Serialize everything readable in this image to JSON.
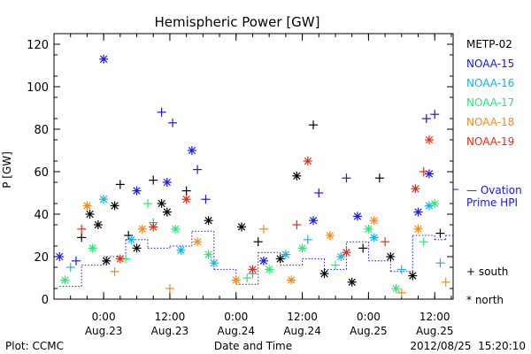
{
  "chart_data": {
    "type": "scatter",
    "title": "Hemispheric Power [GW]",
    "xlabel": "Date and Time",
    "ylabel": "P [GW]",
    "ylim": [
      0,
      125
    ],
    "yticks": [
      0,
      20,
      40,
      60,
      80,
      100,
      120
    ],
    "xlim": [
      "2012-08-22T15:00",
      "2012-08-25T15:20"
    ],
    "xticks": [
      {
        "t": "2012-08-23T00:00",
        "line1": "0:00",
        "line2": "Aug.23"
      },
      {
        "t": "2012-08-23T12:00",
        "line1": "12:00",
        "line2": "Aug.23"
      },
      {
        "t": "2012-08-24T00:00",
        "line1": "0:00",
        "line2": "Aug.24"
      },
      {
        "t": "2012-08-24T12:00",
        "line1": "12:00",
        "line2": "Aug.24"
      },
      {
        "t": "2012-08-25T00:00",
        "line1": "0:00",
        "line2": "Aug.25"
      },
      {
        "t": "2012-08-25T12:00",
        "line1": "12:00",
        "line2": "Aug.25"
      }
    ],
    "grid": false,
    "legend_position": "right",
    "series": [
      {
        "name": "METP-02",
        "color": "#000000",
        "points": [
          {
            "t": "2012-08-22T20:00",
            "y": 29,
            "m": "south"
          },
          {
            "t": "2012-08-22T21:30",
            "y": 40,
            "m": "north"
          },
          {
            "t": "2012-08-22T23:00",
            "y": 35,
            "m": "north"
          },
          {
            "t": "2012-08-23T00:30",
            "y": 18,
            "m": "north"
          },
          {
            "t": "2012-08-23T02:00",
            "y": 44,
            "m": "north"
          },
          {
            "t": "2012-08-23T03:00",
            "y": 54,
            "m": "south"
          },
          {
            "t": "2012-08-23T04:30",
            "y": 30,
            "m": "south"
          },
          {
            "t": "2012-08-23T06:00",
            "y": 24,
            "m": "north"
          },
          {
            "t": "2012-08-23T09:00",
            "y": 56,
            "m": "south"
          },
          {
            "t": "2012-08-23T10:30",
            "y": 45,
            "m": "north"
          },
          {
            "t": "2012-08-23T11:30",
            "y": 41,
            "m": "north"
          },
          {
            "t": "2012-08-23T15:00",
            "y": 51,
            "m": "south"
          },
          {
            "t": "2012-08-23T19:00",
            "y": 37,
            "m": "north"
          },
          {
            "t": "2012-08-24T01:00",
            "y": 34,
            "m": "north"
          },
          {
            "t": "2012-08-24T04:00",
            "y": 27,
            "m": "south"
          },
          {
            "t": "2012-08-24T08:00",
            "y": 19,
            "m": "north"
          },
          {
            "t": "2012-08-24T11:00",
            "y": 58,
            "m": "north"
          },
          {
            "t": "2012-08-24T14:00",
            "y": 82,
            "m": "south"
          },
          {
            "t": "2012-08-24T16:00",
            "y": 12,
            "m": "north"
          },
          {
            "t": "2012-08-24T21:00",
            "y": 8,
            "m": "north"
          },
          {
            "t": "2012-08-24T23:00",
            "y": 24,
            "m": "south"
          },
          {
            "t": "2012-08-25T02:00",
            "y": 57,
            "m": "south"
          },
          {
            "t": "2012-08-25T04:00",
            "y": 20,
            "m": "north"
          },
          {
            "t": "2012-08-25T08:00",
            "y": 11,
            "m": "north"
          },
          {
            "t": "2012-08-25T13:00",
            "y": 31,
            "m": "south"
          }
        ]
      },
      {
        "name": "NOAA-15",
        "color": "#1a1adc",
        "points": [
          {
            "t": "2012-08-22T16:00",
            "y": 20,
            "m": "north"
          },
          {
            "t": "2012-08-22T19:00",
            "y": 18,
            "m": "south"
          },
          {
            "t": "2012-08-23T00:00",
            "y": 113,
            "m": "north"
          },
          {
            "t": "2012-08-23T06:00",
            "y": 51,
            "m": "north"
          },
          {
            "t": "2012-08-23T10:30",
            "y": 88,
            "m": "south"
          },
          {
            "t": "2012-08-23T11:30",
            "y": 55,
            "m": "north"
          },
          {
            "t": "2012-08-23T12:30",
            "y": 83,
            "m": "south"
          },
          {
            "t": "2012-08-23T16:00",
            "y": 70,
            "m": "north"
          },
          {
            "t": "2012-08-23T17:00",
            "y": 61,
            "m": "south"
          },
          {
            "t": "2012-08-23T18:30",
            "y": 47,
            "m": "south"
          },
          {
            "t": "2012-08-24T05:00",
            "y": 18,
            "m": "north"
          },
          {
            "t": "2012-08-24T14:00",
            "y": 37,
            "m": "north"
          },
          {
            "t": "2012-08-24T15:00",
            "y": 50,
            "m": "south"
          },
          {
            "t": "2012-08-24T20:00",
            "y": 57,
            "m": "south"
          },
          {
            "t": "2012-08-24T22:00",
            "y": 39,
            "m": "north"
          },
          {
            "t": "2012-08-25T09:00",
            "y": 41,
            "m": "north"
          },
          {
            "t": "2012-08-25T10:30",
            "y": 85,
            "m": "south"
          },
          {
            "t": "2012-08-25T11:00",
            "y": 59,
            "m": "north"
          },
          {
            "t": "2012-08-25T12:00",
            "y": 87,
            "m": "south"
          }
        ]
      },
      {
        "name": "NOAA-16",
        "color": "#16b4e6",
        "points": [
          {
            "t": "2012-08-22T18:00",
            "y": 15,
            "m": "south"
          },
          {
            "t": "2012-08-23T00:00",
            "y": 47,
            "m": "north"
          },
          {
            "t": "2012-08-23T05:00",
            "y": 28,
            "m": "north"
          },
          {
            "t": "2012-08-23T09:00",
            "y": 36,
            "m": "south"
          },
          {
            "t": "2012-08-23T14:00",
            "y": 23,
            "m": "north"
          },
          {
            "t": "2012-08-23T20:00",
            "y": 17,
            "m": "north"
          },
          {
            "t": "2012-08-24T03:00",
            "y": 12,
            "m": "south"
          },
          {
            "t": "2012-08-24T09:00",
            "y": 21,
            "m": "north"
          },
          {
            "t": "2012-08-24T13:00",
            "y": 28,
            "m": "south"
          },
          {
            "t": "2012-08-24T19:00",
            "y": 20,
            "m": "north"
          },
          {
            "t": "2012-08-25T01:00",
            "y": 29,
            "m": "north"
          },
          {
            "t": "2012-08-25T06:00",
            "y": 14,
            "m": "south"
          },
          {
            "t": "2012-08-25T11:00",
            "y": 44,
            "m": "north"
          },
          {
            "t": "2012-08-25T13:00",
            "y": 17,
            "m": "south"
          }
        ]
      },
      {
        "name": "NOAA-17",
        "color": "#2ee67a",
        "points": [
          {
            "t": "2012-08-22T17:00",
            "y": 9,
            "m": "north"
          },
          {
            "t": "2012-08-22T22:00",
            "y": 24,
            "m": "north"
          },
          {
            "t": "2012-08-23T04:00",
            "y": 19,
            "m": "south"
          },
          {
            "t": "2012-08-23T08:00",
            "y": 45,
            "m": "south"
          },
          {
            "t": "2012-08-23T13:00",
            "y": 33,
            "m": "north"
          },
          {
            "t": "2012-08-23T19:00",
            "y": 21,
            "m": "north"
          },
          {
            "t": "2012-08-24T02:00",
            "y": 10,
            "m": "south"
          },
          {
            "t": "2012-08-24T06:00",
            "y": 14,
            "m": "north"
          },
          {
            "t": "2012-08-24T12:00",
            "y": 24,
            "m": "north"
          },
          {
            "t": "2012-08-24T18:00",
            "y": 16,
            "m": "south"
          },
          {
            "t": "2012-08-25T00:00",
            "y": 33,
            "m": "north"
          },
          {
            "t": "2012-08-25T05:00",
            "y": 5,
            "m": "north"
          },
          {
            "t": "2012-08-25T10:00",
            "y": 27,
            "m": "south"
          },
          {
            "t": "2012-08-25T12:00",
            "y": 45,
            "m": "north"
          }
        ]
      },
      {
        "name": "NOAA-18",
        "color": "#f08c1e",
        "points": [
          {
            "t": "2012-08-22T21:00",
            "y": 44,
            "m": "north"
          },
          {
            "t": "2012-08-23T02:00",
            "y": 13,
            "m": "south"
          },
          {
            "t": "2012-08-23T07:00",
            "y": 33,
            "m": "north"
          },
          {
            "t": "2012-08-23T12:00",
            "y": 5,
            "m": "south"
          },
          {
            "t": "2012-08-23T17:00",
            "y": 27,
            "m": "north"
          },
          {
            "t": "2012-08-24T00:00",
            "y": 9,
            "m": "north"
          },
          {
            "t": "2012-08-24T05:00",
            "y": 33,
            "m": "south"
          },
          {
            "t": "2012-08-24T10:00",
            "y": 9,
            "m": "north"
          },
          {
            "t": "2012-08-24T17:00",
            "y": 30,
            "m": "north"
          },
          {
            "t": "2012-08-25T01:00",
            "y": 37,
            "m": "north"
          },
          {
            "t": "2012-08-25T06:00",
            "y": 3,
            "m": "south"
          },
          {
            "t": "2012-08-25T09:00",
            "y": 33,
            "m": "north"
          },
          {
            "t": "2012-08-25T14:00",
            "y": 8,
            "m": "south"
          }
        ]
      },
      {
        "name": "NOAA-19",
        "color": "#e62d14",
        "points": [
          {
            "t": "2012-08-22T20:00",
            "y": 33,
            "m": "south"
          },
          {
            "t": "2012-08-23T03:00",
            "y": 19,
            "m": "north"
          },
          {
            "t": "2012-08-23T09:00",
            "y": 34,
            "m": "north"
          },
          {
            "t": "2012-08-23T15:00",
            "y": 47,
            "m": "north"
          },
          {
            "t": "2012-08-24T03:00",
            "y": 14,
            "m": "north"
          },
          {
            "t": "2012-08-24T11:00",
            "y": 35,
            "m": "south"
          },
          {
            "t": "2012-08-24T13:00",
            "y": 65,
            "m": "north"
          },
          {
            "t": "2012-08-24T20:00",
            "y": 22,
            "m": "north"
          },
          {
            "t": "2012-08-25T03:00",
            "y": 27,
            "m": "south"
          },
          {
            "t": "2012-08-25T08:30",
            "y": 52,
            "m": "north"
          },
          {
            "t": "2012-08-25T10:00",
            "y": 60,
            "m": "south"
          },
          {
            "t": "2012-08-25T11:00",
            "y": 75,
            "m": "north"
          }
        ]
      }
    ],
    "ovation": {
      "name_line1": "— Ovation",
      "name_line2": "Prime HPI",
      "color": "#1a1adc",
      "points": [
        {
          "t": "2012-08-22T16:00",
          "y": 6
        },
        {
          "t": "2012-08-22T20:00",
          "y": 16
        },
        {
          "t": "2012-08-23T00:00",
          "y": 20
        },
        {
          "t": "2012-08-23T04:00",
          "y": 28
        },
        {
          "t": "2012-08-23T08:00",
          "y": 24
        },
        {
          "t": "2012-08-23T12:00",
          "y": 25
        },
        {
          "t": "2012-08-23T16:00",
          "y": 32
        },
        {
          "t": "2012-08-23T20:00",
          "y": 14
        },
        {
          "t": "2012-08-24T00:00",
          "y": 7
        },
        {
          "t": "2012-08-24T04:00",
          "y": 22
        },
        {
          "t": "2012-08-24T08:00",
          "y": 16
        },
        {
          "t": "2012-08-24T12:00",
          "y": 19
        },
        {
          "t": "2012-08-24T16:00",
          "y": 14
        },
        {
          "t": "2012-08-24T20:00",
          "y": 27
        },
        {
          "t": "2012-08-25T00:00",
          "y": 18
        },
        {
          "t": "2012-08-25T04:00",
          "y": 13
        },
        {
          "t": "2012-08-25T08:00",
          "y": 30
        },
        {
          "t": "2012-08-25T12:00",
          "y": 28
        },
        {
          "t": "2012-08-25T14:00",
          "y": 30
        }
      ]
    },
    "marker_legend": {
      "south": "+ south",
      "north": "* north"
    }
  },
  "footer": {
    "left": "Plot: CCMC",
    "center": "Date and Time",
    "right": "2012/08/25  15:20:10"
  }
}
